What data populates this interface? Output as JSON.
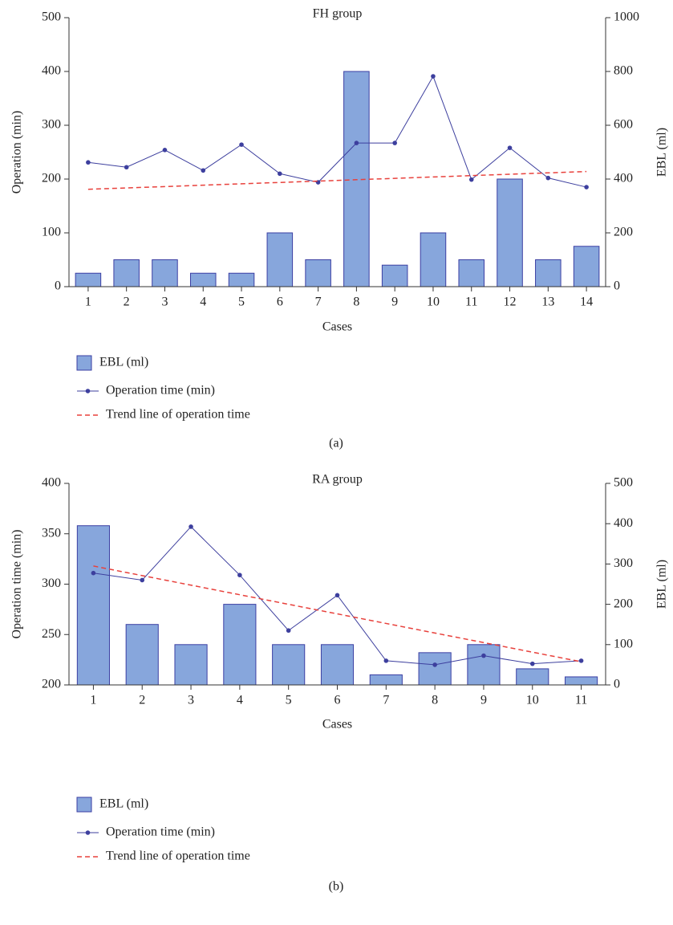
{
  "chart_data": [
    {
      "type": "combo",
      "title": "FH group",
      "xlabel": "Cases",
      "ylabel": "Operation (min)",
      "y2label": "EBL (ml)",
      "caption": "(a)",
      "categories": [
        "1",
        "2",
        "3",
        "4",
        "5",
        "6",
        "7",
        "8",
        "9",
        "10",
        "11",
        "12",
        "13",
        "14"
      ],
      "ylim": [
        0,
        500
      ],
      "yticks": [
        0,
        100,
        200,
        300,
        400,
        500
      ],
      "y2lim": [
        0,
        1000
      ],
      "y2ticks": [
        0,
        200,
        400,
        600,
        800,
        1000
      ],
      "series": [
        {
          "name": "EBL (ml)",
          "type": "bar",
          "axis": "y2",
          "color": "#87a6dc",
          "values": [
            50,
            100,
            100,
            50,
            50,
            200,
            100,
            800,
            80,
            200,
            100,
            400,
            100,
            150
          ]
        },
        {
          "name": "Operation time (min)",
          "type": "line",
          "color": "#3d3f9e",
          "values": [
            231,
            222,
            254,
            216,
            264,
            210,
            194,
            267,
            267,
            391,
            199,
            258,
            202,
            185
          ]
        },
        {
          "name": "Trend line of operation time",
          "type": "dashed",
          "color": "#e8413c",
          "values": [
            181,
            183.5,
            186,
            188.6,
            191.2,
            193.7,
            196.2,
            198.8,
            201.3,
            203.9,
            206.4,
            209,
            211.5,
            214
          ]
        }
      ]
    },
    {
      "type": "combo",
      "title": "RA group",
      "xlabel": "Cases",
      "ylabel": "Operation time (min)",
      "y2label": "EBL (ml)",
      "caption": "(b)",
      "categories": [
        "1",
        "2",
        "3",
        "4",
        "5",
        "6",
        "7",
        "8",
        "9",
        "10",
        "11"
      ],
      "ylim": [
        200,
        400
      ],
      "yticks": [
        200,
        250,
        300,
        350,
        400
      ],
      "y2lim": [
        0,
        500
      ],
      "y2ticks": [
        0,
        100,
        200,
        300,
        400,
        500
      ],
      "series": [
        {
          "name": "EBL (ml)",
          "type": "bar",
          "axis": "y2",
          "color": "#87a6dc",
          "values": [
            395,
            150,
            100,
            200,
            100,
            100,
            25,
            80,
            100,
            40,
            20
          ]
        },
        {
          "name": "Operation time (min)",
          "type": "line",
          "color": "#3d3f9e",
          "values": [
            311,
            304,
            357,
            309,
            254,
            289,
            224,
            220,
            229,
            221,
            224
          ]
        },
        {
          "name": "Trend line of operation time",
          "type": "dashed",
          "color": "#e8413c",
          "values": [
            318,
            308.5,
            299,
            289.5,
            280,
            270.5,
            261,
            251.5,
            242,
            232.5,
            223
          ]
        }
      ]
    }
  ]
}
